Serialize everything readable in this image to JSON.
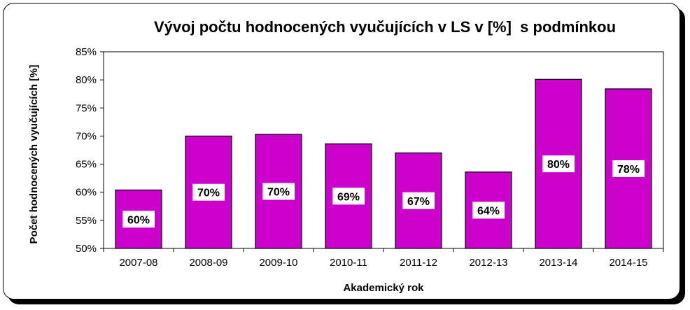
{
  "chart_data": {
    "type": "bar",
    "title": "Vývoj počtu hodnocených vyučujících v LS v [%]  s podmínkou",
    "xlabel": "Akademický rok",
    "ylabel": "Počet  hodnocených  vyučujících [%]",
    "categories": [
      "2007-08",
      "2008-09",
      "2009-10",
      "2010-11",
      "2011-12",
      "2012-13",
      "2013-14",
      "2014-15"
    ],
    "values": [
      60.4,
      70.0,
      70.3,
      68.6,
      67.0,
      63.6,
      80.1,
      78.4
    ],
    "data_labels": [
      "60%",
      "70%",
      "70%",
      "69%",
      "67%",
      "64%",
      "80%",
      "78%"
    ],
    "ylim": [
      50,
      85
    ],
    "yticks": [
      "50%",
      "55%",
      "60%",
      "65%",
      "70%",
      "75%",
      "80%",
      "85%"
    ],
    "grid": false,
    "legend": "none",
    "bar_color": "#cc00cc"
  }
}
